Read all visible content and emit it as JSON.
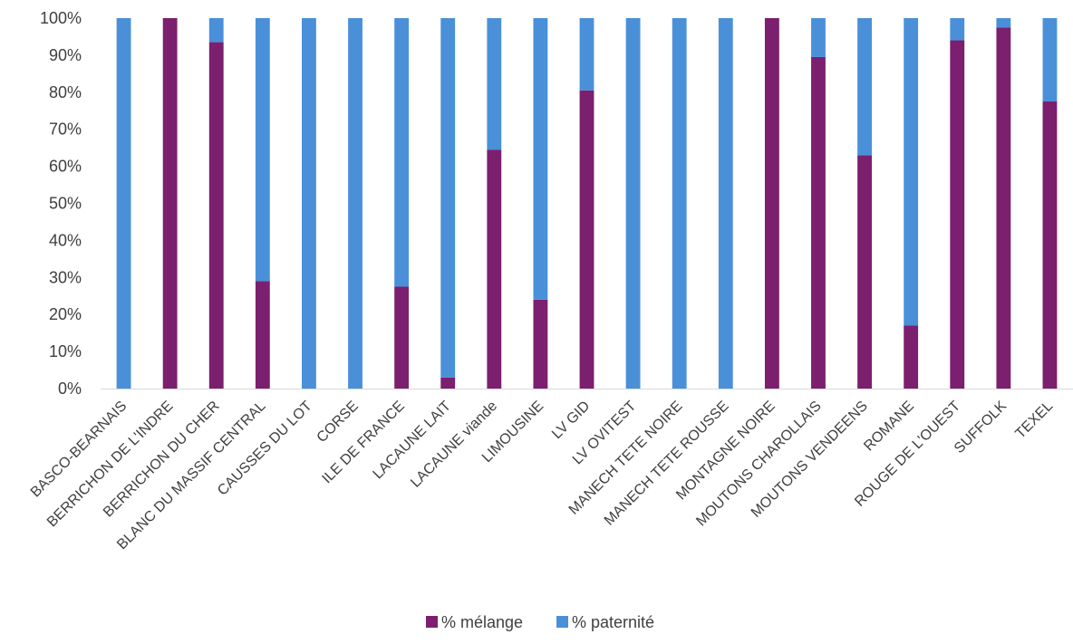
{
  "chart_data": {
    "type": "bar",
    "stacked": "percent",
    "categories": [
      "BASCO-BEARNAIS",
      "BERRICHON DE L'INDRE",
      "BERRICHON DU CHER",
      "BLANC DU MASSIF CENTRAL",
      "CAUSSES DU LOT",
      "CORSE",
      "ILE DE FRANCE",
      "LACAUNE LAIT",
      "LACAUNE viande",
      "LIMOUSINE",
      "LV GID",
      "LV OVITEST",
      "MANECH TETE NOIRE",
      "MANECH TETE ROUSSE",
      "MONTAGNE NOIRE",
      "MOUTONS CHAROLLAIS",
      "MOUTONS VENDEENS",
      "ROMANE",
      "ROUGE DE L'OUEST",
      "SUFFOLK",
      "TEXEL"
    ],
    "series": [
      {
        "name": "% mélange",
        "color": "#7b1f6e",
        "values": [
          0,
          100,
          93.5,
          29,
          0,
          0,
          27.5,
          3,
          64.5,
          24,
          80.5,
          0,
          0,
          0,
          100,
          89.5,
          63,
          17,
          94,
          97.5,
          77.5
        ]
      },
      {
        "name": "% paternité",
        "color": "#4a90d9",
        "values": [
          100,
          0,
          6.5,
          71,
          100,
          100,
          72.5,
          97,
          35.5,
          76,
          19.5,
          100,
          100,
          100,
          0,
          10.5,
          37,
          83,
          6,
          2.5,
          22.5
        ]
      }
    ],
    "ylim": [
      0,
      100
    ],
    "yticks": [
      "0%",
      "10%",
      "20%",
      "30%",
      "40%",
      "50%",
      "60%",
      "70%",
      "80%",
      "90%",
      "100%"
    ],
    "title": "",
    "xlabel": "",
    "ylabel": "",
    "grid": false,
    "legend": "bottom"
  }
}
